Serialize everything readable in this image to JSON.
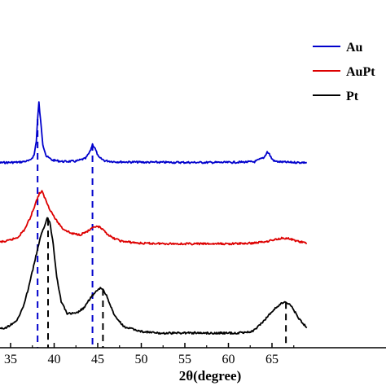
{
  "chart_data": {
    "type": "line",
    "title": "",
    "xlabel": "2θ(degree)",
    "ylabel": "",
    "xlim": [
      32.5,
      69
    ],
    "x_ticks": [
      35,
      40,
      45,
      50,
      55,
      60,
      65
    ],
    "x_tick_labels": [
      "35",
      "40",
      "45",
      "50",
      "55",
      "60",
      "65"
    ],
    "y_ticks_shown": false,
    "grid": false,
    "legend_position": "top-right",
    "series": [
      {
        "name": "Au",
        "color": "#0000cc",
        "x": [
          32.5,
          34,
          36,
          37.2,
          37.7,
          37.95,
          38.1,
          38.25,
          38.45,
          38.7,
          39.1,
          39.8,
          41,
          42.5,
          43.6,
          44.1,
          44.4,
          44.7,
          45.1,
          45.8,
          47,
          50,
          55,
          60,
          63,
          64.1,
          64.45,
          64.7,
          64.95,
          65.3,
          66,
          67,
          69
        ],
        "y": [
          1.005,
          1.002,
          1.006,
          1.02,
          1.07,
          1.2,
          1.4,
          1.55,
          1.38,
          1.17,
          1.06,
          1.025,
          1.012,
          1.015,
          1.04,
          1.1,
          1.17,
          1.13,
          1.05,
          1.02,
          1.01,
          1.006,
          1.004,
          1.004,
          1.01,
          1.05,
          1.1,
          1.08,
          1.04,
          1.015,
          1.008,
          1.005,
          1.003
        ]
      },
      {
        "name": "AuPt",
        "color": "#dd0000",
        "x": [
          32.5,
          34.5,
          35.8,
          36.6,
          37.3,
          37.9,
          38.3,
          38.6,
          38.8,
          39.1,
          39.5,
          40.2,
          41,
          42,
          43,
          44,
          44.7,
          45.2,
          45.8,
          46.6,
          47.8,
          50,
          55,
          60,
          62.5,
          64,
          65.2,
          66.2,
          66.8,
          67.6,
          68.5,
          69
        ],
        "y": [
          0.515,
          0.53,
          0.57,
          0.65,
          0.78,
          0.93,
          1.02,
          1.04,
          1.0,
          0.94,
          0.86,
          0.75,
          0.66,
          0.61,
          0.6,
          0.64,
          0.68,
          0.675,
          0.63,
          0.57,
          0.53,
          0.51,
          0.505,
          0.505,
          0.51,
          0.525,
          0.545,
          0.565,
          0.56,
          0.54,
          0.52,
          0.51
        ]
      },
      {
        "name": "Pt",
        "color": "#000000",
        "x": [
          32.5,
          34.5,
          35.8,
          36.6,
          37.3,
          37.9,
          38.4,
          38.8,
          39.2,
          39.5,
          39.9,
          40.3,
          40.8,
          41.5,
          42.5,
          43.5,
          44.2,
          44.9,
          45.3,
          45.6,
          46.1,
          46.9,
          48,
          50,
          52,
          55,
          58,
          61,
          62.8,
          64,
          65.2,
          66.1,
          66.6,
          67.2,
          68,
          69
        ],
        "y": [
          0.015,
          0.03,
          0.07,
          0.15,
          0.27,
          0.38,
          0.47,
          0.52,
          0.57,
          0.55,
          0.44,
          0.28,
          0.16,
          0.1,
          0.1,
          0.13,
          0.18,
          0.21,
          0.225,
          0.22,
          0.18,
          0.09,
          0.035,
          0.012,
          0.003,
          0.005,
          0.004,
          0.004,
          0.012,
          0.06,
          0.12,
          0.15,
          0.155,
          0.14,
          0.08,
          0.03
        ]
      }
    ],
    "reference_lines": [
      {
        "x": 38.1,
        "color": "#0000cc",
        "from_series": "Au"
      },
      {
        "x": 44.4,
        "color": "#0000cc",
        "from_series": "Au"
      },
      {
        "x": 39.3,
        "color": "#000000",
        "from_series": "Pt"
      },
      {
        "x": 45.6,
        "color": "#000000",
        "from_series": "Pt"
      },
      {
        "x": 66.6,
        "color": "#000000",
        "from_series": "Pt"
      }
    ]
  }
}
